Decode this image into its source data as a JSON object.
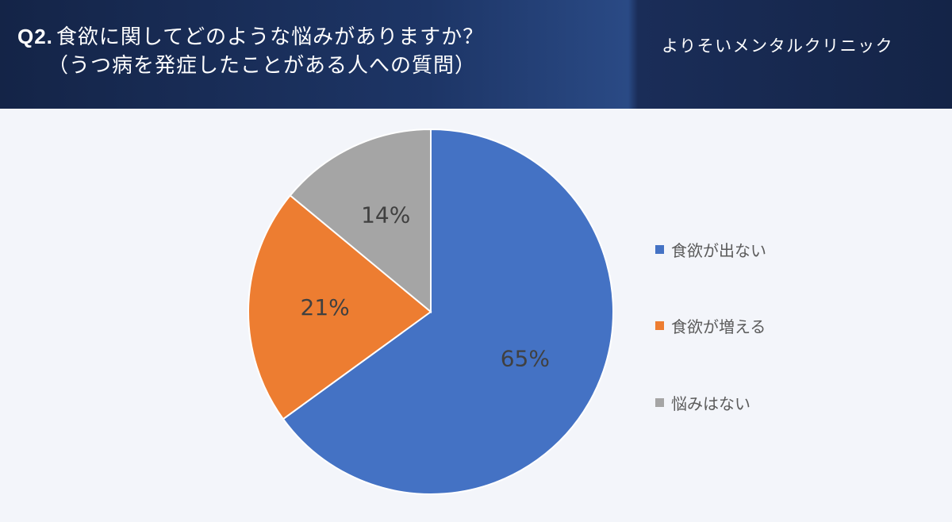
{
  "header": {
    "question_number": "Q2.",
    "question_text": "食欲に関してどのような悩みがありますか？",
    "question_sub": "（うつ病を発症したことがある人への質問）",
    "clinic_name": "よりそいメンタルクリニック"
  },
  "chart_data": {
    "type": "pie",
    "categories": [
      "食欲が出ない",
      "食欲が増える",
      "悩みはない"
    ],
    "values": [
      65,
      21,
      14
    ],
    "labels": [
      "65%",
      "21%",
      "14%"
    ],
    "colors": [
      "#4472c4",
      "#ed7d31",
      "#a5a5a5"
    ],
    "legend_position": "right",
    "start_angle": "12 o'clock",
    "direction": "clockwise"
  },
  "legend": {
    "items": [
      {
        "label": "食欲が出ない",
        "color": "#4472c4"
      },
      {
        "label": "食欲が増える",
        "color": "#ed7d31"
      },
      {
        "label": "悩みはない",
        "color": "#a5a5a5"
      }
    ]
  }
}
